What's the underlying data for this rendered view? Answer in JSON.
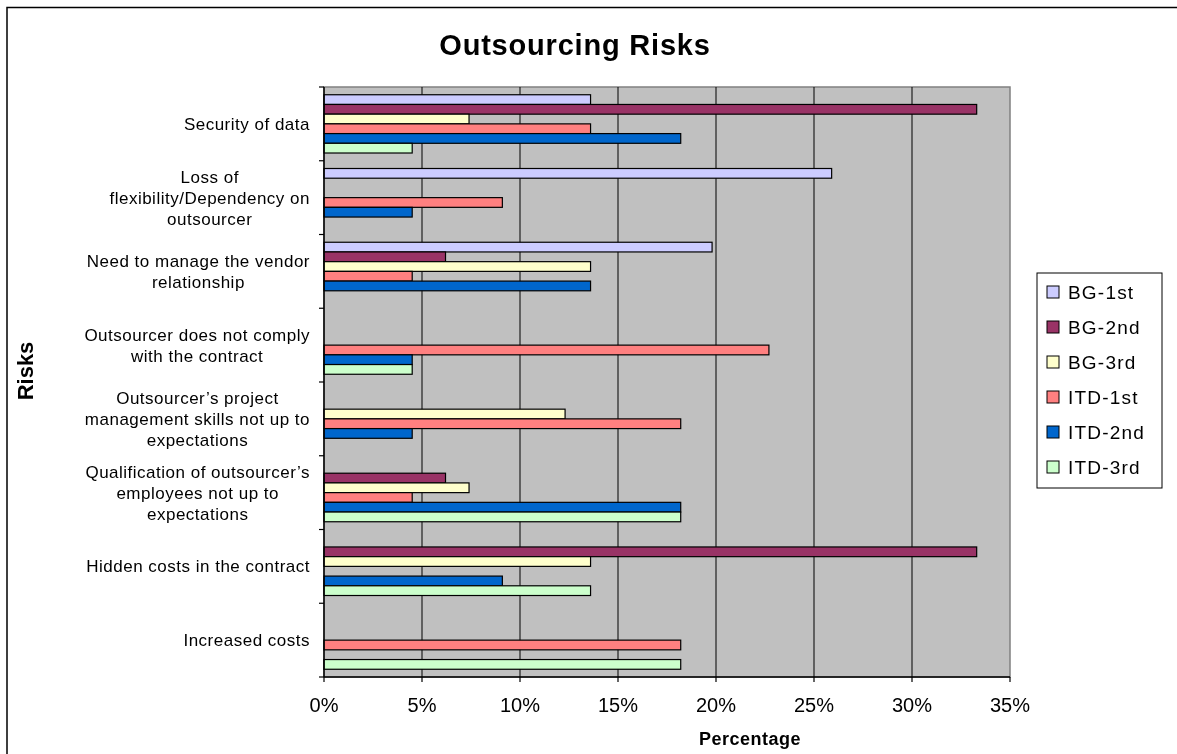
{
  "chart_data": {
    "type": "bar",
    "orientation": "horizontal",
    "title": "Outsourcing Risks",
    "xlabel": "Percentage",
    "ylabel": "Risks",
    "categories": [
      "Security of data",
      "Loss of flexibility/Dependency on outsourcer",
      "Need to manage the vendor relationship",
      "Outsourcer does not comply with the contract",
      "Outsourcer’s project management skills not up to expectations",
      "Qualification of outsourcer’s employees not up to expectations",
      "Hidden costs in the contract",
      "Increased costs"
    ],
    "series": [
      {
        "name": "BG-1st",
        "color": "#ccccff",
        "values": [
          13.6,
          25.9,
          19.8,
          null,
          null,
          null,
          null,
          null
        ]
      },
      {
        "name": "BG-2nd",
        "color": "#993366",
        "values": [
          33.3,
          null,
          6.2,
          null,
          null,
          6.2,
          33.3,
          null
        ]
      },
      {
        "name": "BG-3rd",
        "color": "#ffffcc",
        "values": [
          7.4,
          null,
          13.6,
          null,
          12.3,
          7.4,
          13.6,
          null
        ]
      },
      {
        "name": "ITD-1st",
        "color": "#ff8080",
        "values": [
          13.6,
          9.1,
          4.5,
          22.7,
          18.2,
          4.5,
          null,
          18.2
        ]
      },
      {
        "name": "ITD-2nd",
        "color": "#0066cc",
        "values": [
          18.2,
          4.5,
          13.6,
          4.5,
          4.5,
          18.2,
          9.1,
          null
        ]
      },
      {
        "name": "ITD-3rd",
        "color": "#ccffcc",
        "values": [
          4.5,
          null,
          null,
          4.5,
          null,
          18.2,
          13.6,
          18.2
        ]
      }
    ],
    "xlim": [
      0,
      35
    ],
    "xticks": [
      {
        "value": 0,
        "label": "0%"
      },
      {
        "value": 5,
        "label": "5%"
      },
      {
        "value": 10,
        "label": "10%"
      },
      {
        "value": 15,
        "label": "15%"
      },
      {
        "value": 20,
        "label": "20%"
      },
      {
        "value": 25,
        "label": "25%"
      },
      {
        "value": 30,
        "label": "30%"
      },
      {
        "value": 35,
        "label": "35%"
      }
    ],
    "grid": "x",
    "legend": "right"
  }
}
